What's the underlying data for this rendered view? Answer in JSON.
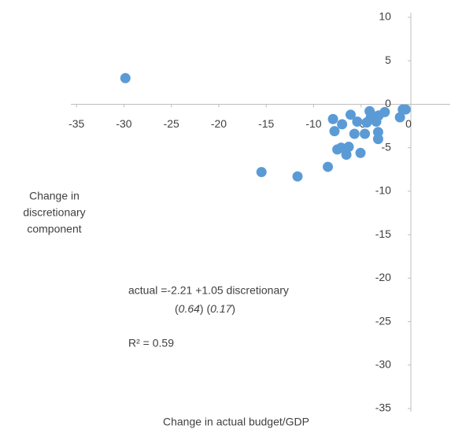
{
  "chart_data": {
    "type": "scatter",
    "x_label": "Change in actual budget/GDP",
    "y_label": [
      "Change in",
      "discretionary",
      "component"
    ],
    "annotations": [
      "actual =-2.21 +1.05 discretionary",
      "(0.64) (0.17)",
      "R² = 0.59"
    ],
    "color": "#5b9bd5",
    "xlim": [
      -35.6,
      4.4
    ],
    "ylim": [
      -35,
      10
    ],
    "xticks": [
      -35,
      -30,
      -25,
      -20,
      -15,
      -10,
      -5,
      0
    ],
    "yticks": [
      10,
      5,
      0,
      -5,
      -10,
      -15,
      -20,
      -25,
      -30,
      -35
    ],
    "x": [
      -29.85,
      -15.5,
      -11.7,
      -8.5,
      -7.96,
      -7.8,
      -7.5,
      -7.1,
      -7.0,
      -6.55,
      -6.3,
      -6.1,
      -5.7,
      -5.4,
      -5.06,
      -4.6,
      -4.4,
      -4.1,
      -4.0,
      -3.6,
      -3.4,
      -3.2,
      -3.2,
      -3.15,
      -2.5,
      -0.9,
      -0.6,
      -0.3
    ],
    "values": [
      3.0,
      -7.8,
      -8.3,
      -7.2,
      -1.7,
      -3.1,
      -5.2,
      -5.0,
      -2.3,
      -5.8,
      -4.9,
      -1.2,
      -3.4,
      -2.0,
      -5.6,
      -3.4,
      -2.1,
      -0.8,
      -1.6,
      -1.4,
      -2.0,
      -3.2,
      -4.0,
      -1.3,
      -0.9,
      -1.5,
      -0.6,
      -0.6
    ]
  }
}
